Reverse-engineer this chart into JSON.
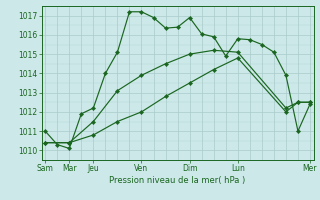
{
  "xlabel": "Pression niveau de la mer( hPa )",
  "bg_color": "#cce8e8",
  "grid_color": "#aacccc",
  "line_color": "#1a6620",
  "ylim": [
    1009.5,
    1017.5
  ],
  "yticks": [
    1010,
    1011,
    1012,
    1013,
    1014,
    1015,
    1016,
    1017
  ],
  "xlim": [
    -0.3,
    22.3
  ],
  "x_tick_positions": [
    0,
    2,
    4,
    8,
    12,
    16,
    22
  ],
  "x_tick_labels": [
    "Sam",
    "Mar",
    "Jeu",
    "Ven",
    "Dim",
    "Lun",
    "Mer"
  ],
  "series1_x": [
    0,
    1,
    2,
    3,
    4,
    5,
    6,
    7,
    8,
    9,
    10,
    11,
    12,
    13,
    14,
    15,
    16,
    17,
    18,
    19,
    20,
    21,
    22
  ],
  "series1_y": [
    1011.0,
    1010.3,
    1010.1,
    1011.9,
    1012.2,
    1014.0,
    1015.1,
    1017.2,
    1017.2,
    1016.9,
    1016.35,
    1016.4,
    1016.9,
    1016.05,
    1015.9,
    1014.9,
    1015.8,
    1015.75,
    1015.5,
    1015.1,
    1013.9,
    1011.0,
    1012.4
  ],
  "series2_x": [
    0,
    2,
    4,
    6,
    8,
    10,
    12,
    14,
    16,
    20,
    21,
    22
  ],
  "series2_y": [
    1010.4,
    1010.4,
    1011.5,
    1013.1,
    1013.9,
    1014.5,
    1015.0,
    1015.2,
    1015.1,
    1012.2,
    1012.5,
    1012.5
  ],
  "series3_x": [
    0,
    2,
    4,
    6,
    8,
    10,
    12,
    14,
    16,
    20,
    21,
    22
  ],
  "series3_y": [
    1010.4,
    1010.4,
    1010.8,
    1011.5,
    1012.0,
    1012.8,
    1013.5,
    1014.2,
    1014.8,
    1012.0,
    1012.5,
    1012.5
  ]
}
